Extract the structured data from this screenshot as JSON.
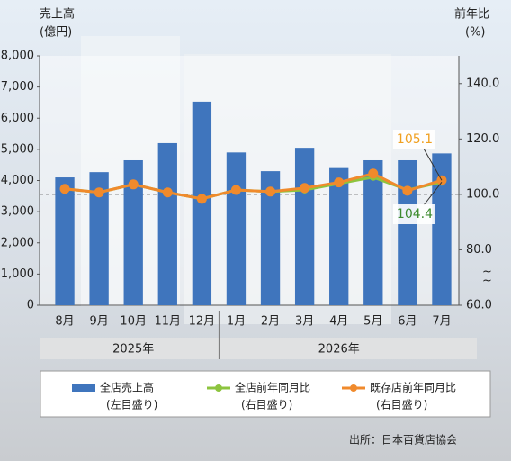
{
  "chart_data": {
    "type": "bar-line",
    "y_label": [
      "売上高",
      "(億円)"
    ],
    "y2_label": [
      "前年比",
      "(%)"
    ],
    "categories": [
      "8月",
      "9月",
      "10月",
      "11月",
      "12月",
      "1月",
      "2月",
      "3月",
      "4月",
      "5月",
      "6月",
      "7月"
    ],
    "years": [
      {
        "label": "2025年",
        "span": [
          0,
          4
        ]
      },
      {
        "label": "2026年",
        "span": [
          5,
          11
        ]
      }
    ],
    "ylim": [
      0,
      8000
    ],
    "yticks": [
      0,
      {
        "value": 1000,
        "label": "1,000"
      },
      {
        "value": 2000,
        "label": "2,000"
      },
      {
        "value": 3000,
        "label": "3,000"
      },
      {
        "value": 4000,
        "label": "4,000"
      },
      {
        "value": 5000,
        "label": "5,000"
      },
      {
        "value": 6000,
        "label": "6,000"
      },
      {
        "value": 7000,
        "label": "7,000"
      },
      {
        "value": 8000,
        "label": "8,000"
      }
    ],
    "y2lim": [
      60,
      150
    ],
    "y2ticks": [
      {
        "value": 60,
        "label": "60.0"
      },
      {
        "value": 80,
        "label": "80.0"
      },
      {
        "value": 100,
        "label": "100.0"
      },
      {
        "value": 120,
        "label": "120.0"
      },
      {
        "value": 140,
        "label": "140.0"
      }
    ],
    "reference_line": 100,
    "series": [
      {
        "name": "全店売上高",
        "axis_note": "(左目盛り)",
        "kind": "bar",
        "color": "#3f75bd",
        "values": [
          4100,
          4270,
          4650,
          5200,
          6530,
          4900,
          4300,
          5050,
          4400,
          4650,
          4650,
          4870
        ]
      },
      {
        "name": "全店前年同月比",
        "axis_note": "(右目盛り)",
        "kind": "line",
        "axis": "y2",
        "color": "#8dc43f",
        "values": [
          102.0,
          100.7,
          103.6,
          100.7,
          98.4,
          101.6,
          101.0,
          101.6,
          103.9,
          106.2,
          101.6,
          104.4
        ],
        "value_labels": [
          null,
          null,
          null,
          null,
          null,
          null,
          null,
          null,
          null,
          null,
          null,
          "104.4"
        ]
      },
      {
        "name": "既存店前年同月比",
        "axis_note": "(右目盛り)",
        "kind": "line",
        "axis": "y2",
        "color": "#f08a2c",
        "values": [
          102.0,
          100.7,
          103.6,
          100.7,
          98.4,
          101.6,
          101.0,
          102.3,
          104.3,
          107.5,
          101.3,
          105.1
        ],
        "value_labels": [
          null,
          null,
          null,
          null,
          null,
          null,
          null,
          null,
          null,
          null,
          null,
          "105.1"
        ]
      }
    ],
    "source": "出所：日本百貨店協会"
  }
}
